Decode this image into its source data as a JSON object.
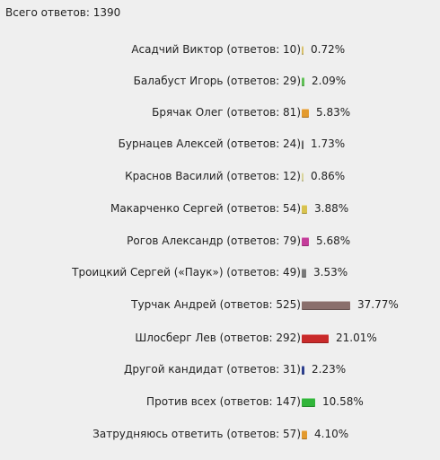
{
  "poll": {
    "total_label": "Всего ответов: 1390",
    "rows": [
      {
        "label": "Асадчий Виктор (ответов: 10)",
        "percent": "0.72%",
        "value": 0.72,
        "color": "#d8c06a"
      },
      {
        "label": "Балабуст Игорь (ответов: 29)",
        "percent": "2.09%",
        "value": 2.09,
        "color": "#5fbf55"
      },
      {
        "label": "Брячак Олег (ответов: 81)",
        "percent": "5.83%",
        "value": 5.83,
        "color": "#e39a2e"
      },
      {
        "label": "Бурнацев Алексей (ответов: 24)",
        "percent": "1.73%",
        "value": 1.73,
        "color": "#666666"
      },
      {
        "label": "Краснов Василий (ответов: 12)",
        "percent": "0.86%",
        "value": 0.86,
        "color": "#d9d49b"
      },
      {
        "label": "Макарченко Сергей (ответов: 54)",
        "percent": "3.88%",
        "value": 3.88,
        "color": "#d8c24e"
      },
      {
        "label": "Рогов Александр (ответов: 79)",
        "percent": "5.68%",
        "value": 5.68,
        "color": "#c43d9a"
      },
      {
        "label": "Троицкий Сергей («Паук») (ответов: 49)",
        "percent": "3.53%",
        "value": 3.53,
        "color": "#7a7a7a"
      },
      {
        "label": "Турчак Андрей (ответов: 525)",
        "percent": "37.77%",
        "value": 37.77,
        "color": "#8a6f6c"
      },
      {
        "label": "Шлосберг Лев (ответов: 292)",
        "percent": "21.01%",
        "value": 21.01,
        "color": "#c92a2a"
      },
      {
        "label": "Другой кандидат (ответов: 31)",
        "percent": "2.23%",
        "value": 2.23,
        "color": "#2c3e8e"
      },
      {
        "label": "Против всех (ответов: 147)",
        "percent": "10.58%",
        "value": 10.58,
        "color": "#31b53a"
      },
      {
        "label": "Затрудняюсь ответить (ответов: 57)",
        "percent": "4.10%",
        "value": 4.1,
        "color": "#e39a2e"
      }
    ]
  }
}
